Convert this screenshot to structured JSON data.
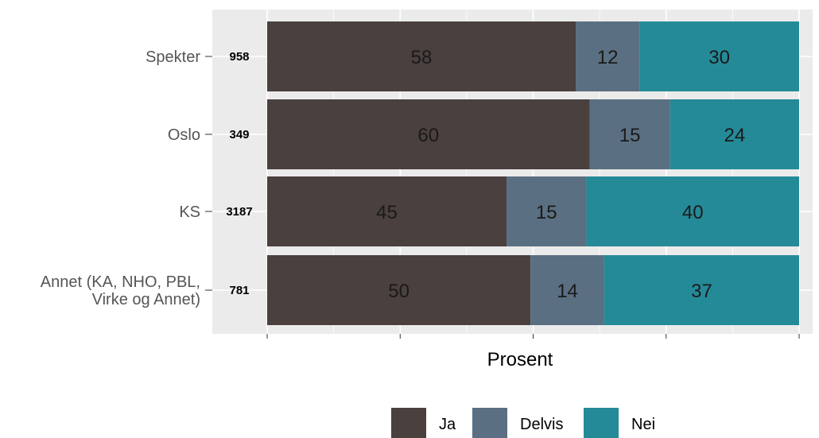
{
  "chart_data": {
    "type": "bar",
    "orientation": "horizontal",
    "stacked": true,
    "categories": [
      "Spekter",
      "Oslo",
      "KS",
      "Annet (KA, NHO, PBL,\nVirke og Annet)"
    ],
    "n_labels": [
      "958",
      "349",
      "3187",
      "781"
    ],
    "series": [
      {
        "name": "Ja",
        "values": [
          58,
          60,
          45,
          50
        ],
        "color": "#4a403e"
      },
      {
        "name": "Delvis",
        "values": [
          12,
          15,
          15,
          14
        ],
        "color": "#5a6f81"
      },
      {
        "name": "Nei",
        "values": [
          30,
          24,
          40,
          37
        ],
        "color": "#258a98"
      }
    ],
    "xlabel": "Prosent",
    "ylabel": "",
    "title": "",
    "xlim": [
      0,
      100
    ],
    "x_tick_labels_shown": false,
    "grid": true,
    "legend": {
      "position": "bottom"
    },
    "background": "#ebebeb"
  }
}
